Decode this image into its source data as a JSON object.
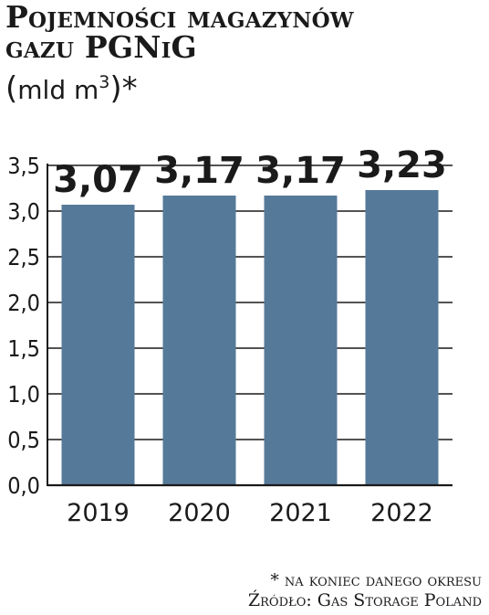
{
  "header": {
    "title_line1": "Pojemności magazynów",
    "title_line2": "gazu PGNiG",
    "unit_open": "(",
    "unit_text": "mld m",
    "unit_sup": "3",
    "unit_close": ")*"
  },
  "footer": {
    "note": "* na koniec danego okresu",
    "source": "Źródło: Gas Storage Poland"
  },
  "colors": {
    "bar": "#557a99",
    "text": "#1a1a1a",
    "axis": "#1a1a1a"
  },
  "chart_data": {
    "type": "bar",
    "categories": [
      "2019",
      "2020",
      "2021",
      "2022"
    ],
    "values": [
      3.07,
      3.17,
      3.17,
      3.23
    ],
    "data_labels": [
      "3,07",
      "3,17",
      "3,17",
      "3,23"
    ],
    "title": "Pojemności magazynów gazu PGNiG",
    "ylabel": "(mld m3)*",
    "xlabel": "",
    "ylim": [
      0,
      3.5
    ],
    "yticks": [
      0,
      0.5,
      1.0,
      1.5,
      2.0,
      2.5,
      3.0,
      3.5
    ],
    "ytick_labels": [
      "0,0",
      "0,5",
      "1,0",
      "1,5",
      "2,0",
      "2,5",
      "3,0",
      "3,5"
    ],
    "grid": true
  }
}
